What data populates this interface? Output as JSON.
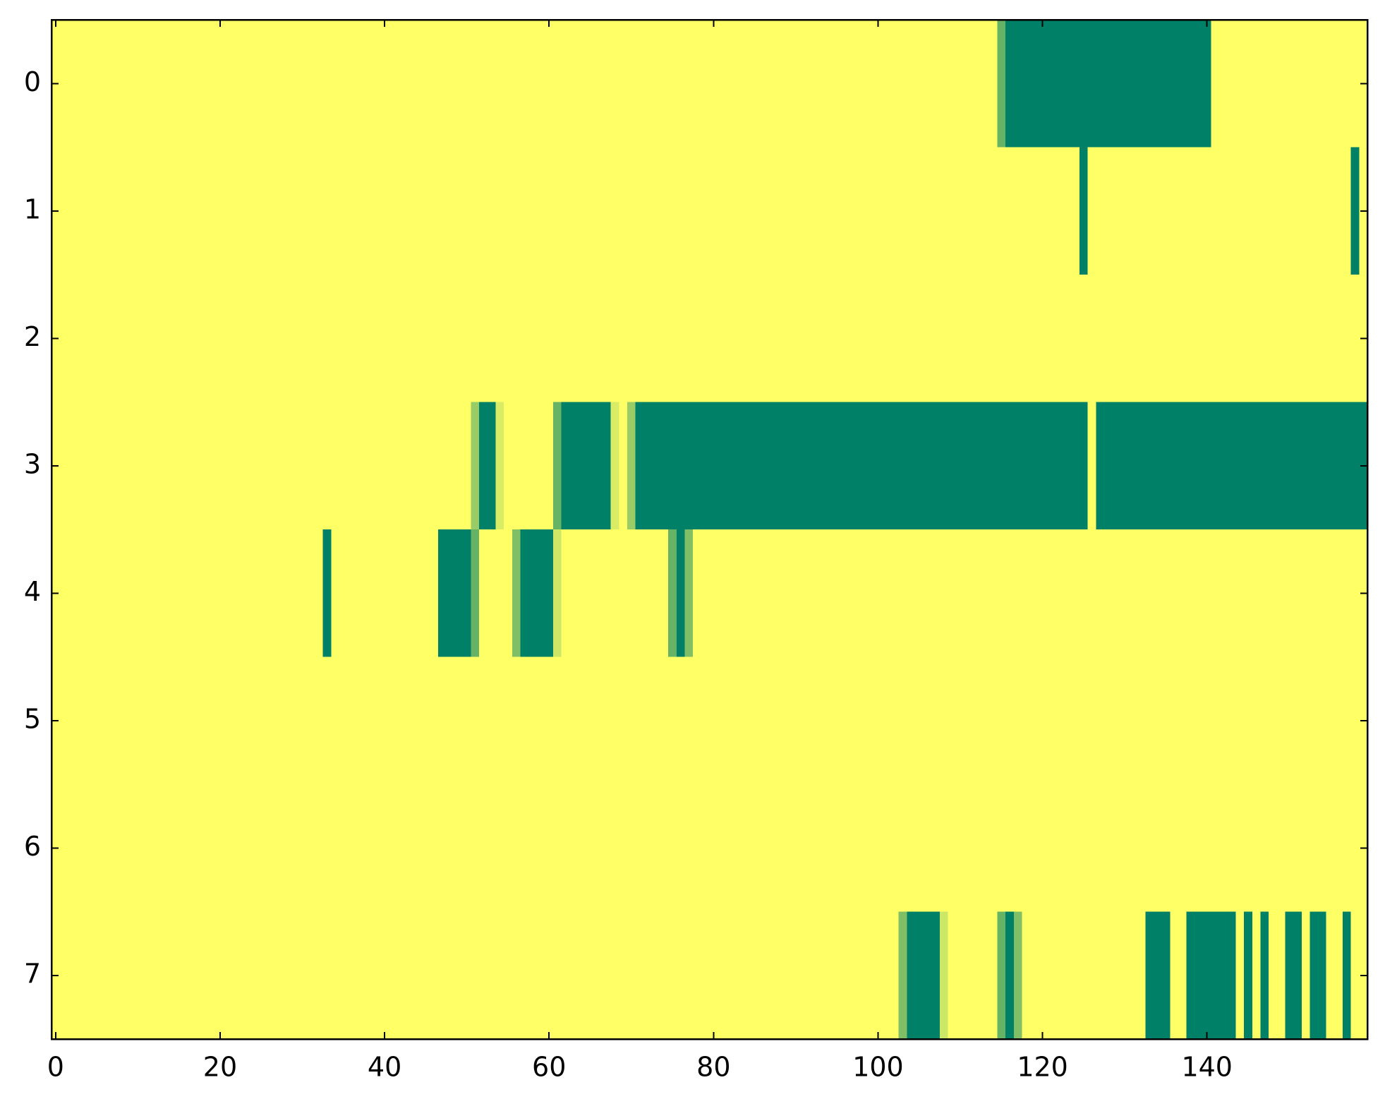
{
  "chart_data": {
    "type": "heatmap",
    "colormap": "summer",
    "clim": [
      0,
      1
    ],
    "xlim": [
      -0.5,
      159.5
    ],
    "ylim": [
      7.5,
      -0.5
    ],
    "xticks": [
      0,
      20,
      40,
      60,
      80,
      100,
      120,
      140
    ],
    "yticks": [
      0,
      1,
      2,
      3,
      4,
      5,
      6,
      7
    ],
    "z": [
      [
        1,
        1,
        1,
        1,
        1,
        1,
        1,
        1,
        1,
        1,
        1,
        1,
        1,
        1,
        1,
        1,
        1,
        1,
        1,
        1,
        1,
        1,
        1,
        1,
        1,
        1,
        1,
        1,
        1,
        1,
        1,
        1,
        1,
        1,
        1,
        1,
        1,
        1,
        1,
        1,
        1,
        1,
        1,
        1,
        1,
        1,
        1,
        1,
        1,
        1,
        1,
        1,
        1,
        1,
        1,
        1,
        1,
        1,
        1,
        1,
        1,
        1,
        1,
        1,
        1,
        1,
        1,
        1,
        1,
        1,
        1,
        1,
        1,
        1,
        1,
        1,
        1,
        1,
        1,
        1,
        1,
        1,
        1,
        1,
        1,
        1,
        1,
        1,
        1,
        1,
        1,
        1,
        1,
        1,
        1,
        1,
        1,
        1,
        1,
        1,
        1,
        1,
        1,
        1,
        1,
        1,
        1,
        1,
        1,
        1,
        1,
        1,
        1,
        1,
        1,
        0.4,
        0,
        0,
        0,
        0,
        0,
        0,
        0,
        0,
        0,
        0,
        0,
        0,
        0,
        0,
        0,
        0,
        0,
        0,
        0,
        0,
        0,
        0,
        0,
        0,
        0,
        1,
        1,
        1,
        1,
        1,
        1,
        1,
        1,
        1,
        1,
        1,
        1,
        1,
        1,
        1,
        1,
        1,
        1,
        1
      ],
      [
        1,
        1,
        1,
        1,
        1,
        1,
        1,
        1,
        1,
        1,
        1,
        1,
        1,
        1,
        1,
        1,
        1,
        1,
        1,
        1,
        1,
        1,
        1,
        1,
        1,
        1,
        1,
        1,
        1,
        1,
        1,
        1,
        1,
        1,
        1,
        1,
        1,
        1,
        1,
        1,
        1,
        1,
        1,
        1,
        1,
        1,
        1,
        1,
        1,
        1,
        1,
        1,
        1,
        1,
        1,
        1,
        1,
        1,
        1,
        1,
        1,
        1,
        1,
        1,
        1,
        1,
        1,
        1,
        1,
        1,
        1,
        1,
        1,
        1,
        1,
        1,
        1,
        1,
        1,
        1,
        1,
        1,
        1,
        1,
        1,
        1,
        1,
        1,
        1,
        1,
        1,
        1,
        1,
        1,
        1,
        1,
        1,
        1,
        1,
        1,
        1,
        1,
        1,
        1,
        1,
        1,
        1,
        1,
        1,
        1,
        1,
        1,
        1,
        1,
        1,
        1,
        1,
        1,
        1,
        1,
        1,
        1,
        1,
        1,
        1,
        0,
        1,
        1,
        1,
        1,
        1,
        1,
        1,
        1,
        1,
        1,
        1,
        1,
        1,
        1,
        1,
        1,
        1,
        1,
        1,
        1,
        1,
        1,
        1,
        1,
        1,
        1,
        1,
        1,
        1,
        1,
        1,
        1,
        0,
        1
      ],
      [
        1,
        1,
        1,
        1,
        1,
        1,
        1,
        1,
        1,
        1,
        1,
        1,
        1,
        1,
        1,
        1,
        1,
        1,
        1,
        1,
        1,
        1,
        1,
        1,
        1,
        1,
        1,
        1,
        1,
        1,
        1,
        1,
        1,
        1,
        1,
        1,
        1,
        1,
        1,
        1,
        1,
        1,
        1,
        1,
        1,
        1,
        1,
        1,
        1,
        1,
        1,
        1,
        1,
        1,
        1,
        1,
        1,
        1,
        1,
        1,
        1,
        1,
        1,
        1,
        1,
        1,
        1,
        1,
        1,
        1,
        1,
        1,
        1,
        1,
        1,
        1,
        1,
        1,
        1,
        1,
        1,
        1,
        1,
        1,
        1,
        1,
        1,
        1,
        1,
        1,
        1,
        1,
        1,
        1,
        1,
        1,
        1,
        1,
        1,
        1,
        1,
        1,
        1,
        1,
        1,
        1,
        1,
        1,
        1,
        1,
        1,
        1,
        1,
        1,
        1,
        1,
        1,
        1,
        1,
        1,
        1,
        1,
        1,
        1,
        1,
        1,
        1,
        1,
        1,
        1,
        1,
        1,
        1,
        1,
        1,
        1,
        1,
        1,
        1,
        1,
        1,
        1,
        1,
        1,
        1,
        1,
        1,
        1,
        1,
        1,
        1,
        1,
        1,
        1,
        1,
        1,
        1,
        1,
        1,
        1
      ],
      [
        1,
        1,
        1,
        1,
        1,
        1,
        1,
        1,
        1,
        1,
        1,
        1,
        1,
        1,
        1,
        1,
        1,
        1,
        1,
        1,
        1,
        1,
        1,
        1,
        1,
        1,
        1,
        1,
        1,
        1,
        1,
        1,
        1,
        1,
        1,
        1,
        1,
        1,
        1,
        1,
        1,
        1,
        1,
        1,
        1,
        1,
        1,
        1,
        1,
        1,
        1,
        0.6,
        0,
        0,
        0.85,
        1,
        1,
        1,
        1,
        1,
        1,
        0.4,
        0,
        0,
        0,
        0,
        0,
        0,
        0.85,
        1,
        0.6,
        0,
        0,
        0,
        0,
        0,
        0,
        0,
        0,
        0,
        0,
        0,
        0,
        0,
        0,
        0,
        0,
        0,
        0,
        0,
        0,
        0,
        0,
        0,
        0,
        0,
        0,
        0,
        0,
        0,
        0,
        0,
        0,
        0,
        0,
        0,
        0,
        0,
        0,
        0,
        0,
        0,
        0,
        0,
        0,
        0,
        0,
        0,
        0,
        0,
        0,
        0,
        0,
        0,
        0,
        0,
        1,
        0,
        0,
        0,
        0,
        0,
        0,
        0,
        0,
        0,
        0,
        0,
        0,
        0,
        0,
        0,
        0,
        0,
        0,
        0,
        0,
        0,
        0,
        0,
        0,
        0,
        0,
        0,
        0,
        0,
        0,
        0,
        0,
        0
      ],
      [
        1,
        1,
        1,
        1,
        1,
        1,
        1,
        1,
        1,
        1,
        1,
        1,
        1,
        1,
        1,
        1,
        1,
        1,
        1,
        1,
        1,
        1,
        1,
        1,
        1,
        1,
        1,
        1,
        1,
        1,
        1,
        1,
        1,
        0,
        1,
        1,
        1,
        1,
        1,
        1,
        1,
        1,
        1,
        1,
        1,
        1,
        1,
        0,
        0,
        0,
        0,
        0.4,
        1,
        1,
        1,
        1,
        0.5,
        0,
        0,
        0,
        0,
        0.8,
        1,
        1,
        1,
        1,
        1,
        1,
        1,
        1,
        1,
        1,
        1,
        1,
        1,
        0.4,
        0,
        0.5,
        1,
        1,
        1,
        1,
        1,
        1,
        1,
        1,
        1,
        1,
        1,
        1,
        1,
        1,
        1,
        1,
        1,
        1,
        1,
        1,
        1,
        1,
        1,
        1,
        1,
        1,
        1,
        1,
        1,
        1,
        1,
        1,
        1,
        1,
        1,
        1,
        1,
        1,
        1,
        1,
        1,
        1,
        1,
        1,
        1,
        1,
        1,
        1,
        1,
        1,
        1,
        1,
        1,
        1,
        1,
        1,
        1,
        1,
        1,
        1,
        1,
        1,
        1,
        1,
        1,
        1,
        1,
        1,
        1,
        1,
        1,
        1,
        1,
        1,
        1,
        1,
        1,
        1,
        1,
        1,
        1,
        1
      ],
      [
        1,
        1,
        1,
        1,
        1,
        1,
        1,
        1,
        1,
        1,
        1,
        1,
        1,
        1,
        1,
        1,
        1,
        1,
        1,
        1,
        1,
        1,
        1,
        1,
        1,
        1,
        1,
        1,
        1,
        1,
        1,
        1,
        1,
        1,
        1,
        1,
        1,
        1,
        1,
        1,
        1,
        1,
        1,
        1,
        1,
        1,
        1,
        1,
        1,
        1,
        1,
        1,
        1,
        1,
        1,
        1,
        1,
        1,
        1,
        1,
        1,
        1,
        1,
        1,
        1,
        1,
        1,
        1,
        1,
        1,
        1,
        1,
        1,
        1,
        1,
        1,
        1,
        1,
        1,
        1,
        1,
        1,
        1,
        1,
        1,
        1,
        1,
        1,
        1,
        1,
        1,
        1,
        1,
        1,
        1,
        1,
        1,
        1,
        1,
        1,
        1,
        1,
        1,
        1,
        1,
        1,
        1,
        1,
        1,
        1,
        1,
        1,
        1,
        1,
        1,
        1,
        1,
        1,
        1,
        1,
        1,
        1,
        1,
        1,
        1,
        1,
        1,
        1,
        1,
        1,
        1,
        1,
        1,
        1,
        1,
        1,
        1,
        1,
        1,
        1,
        1,
        1,
        1,
        1,
        1,
        1,
        1,
        1,
        1,
        1,
        1,
        1,
        1,
        1,
        1,
        1,
        1,
        1,
        1,
        1
      ],
      [
        1,
        1,
        1,
        1,
        1,
        1,
        1,
        1,
        1,
        1,
        1,
        1,
        1,
        1,
        1,
        1,
        1,
        1,
        1,
        1,
        1,
        1,
        1,
        1,
        1,
        1,
        1,
        1,
        1,
        1,
        1,
        1,
        1,
        1,
        1,
        1,
        1,
        1,
        1,
        1,
        1,
        1,
        1,
        1,
        1,
        1,
        1,
        1,
        1,
        1,
        1,
        1,
        1,
        1,
        1,
        1,
        1,
        1,
        1,
        1,
        1,
        1,
        1,
        1,
        1,
        1,
        1,
        1,
        1,
        1,
        1,
        1,
        1,
        1,
        1,
        1,
        1,
        1,
        1,
        1,
        1,
        1,
        1,
        1,
        1,
        1,
        1,
        1,
        1,
        1,
        1,
        1,
        1,
        1,
        1,
        1,
        1,
        1,
        1,
        1,
        1,
        1,
        1,
        1,
        1,
        1,
        1,
        1,
        1,
        1,
        1,
        1,
        1,
        1,
        1,
        1,
        1,
        1,
        1,
        1,
        1,
        1,
        1,
        1,
        1,
        1,
        1,
        1,
        1,
        1,
        1,
        1,
        1,
        1,
        1,
        1,
        1,
        1,
        1,
        1,
        1,
        1,
        1,
        1,
        1,
        1,
        1,
        1,
        1,
        1,
        1,
        1,
        1,
        1,
        1,
        1,
        1,
        1,
        1,
        1
      ],
      [
        1,
        1,
        1,
        1,
        1,
        1,
        1,
        1,
        1,
        1,
        1,
        1,
        1,
        1,
        1,
        1,
        1,
        1,
        1,
        1,
        1,
        1,
        1,
        1,
        1,
        1,
        1,
        1,
        1,
        1,
        1,
        1,
        1,
        1,
        1,
        1,
        1,
        1,
        1,
        1,
        1,
        1,
        1,
        1,
        1,
        1,
        1,
        1,
        1,
        1,
        1,
        1,
        1,
        1,
        1,
        1,
        1,
        1,
        1,
        1,
        1,
        1,
        1,
        1,
        1,
        1,
        1,
        1,
        1,
        1,
        1,
        1,
        1,
        1,
        1,
        1,
        1,
        1,
        1,
        1,
        1,
        1,
        1,
        1,
        1,
        1,
        1,
        1,
        1,
        1,
        1,
        1,
        1,
        1,
        1,
        1,
        1,
        1,
        1,
        1,
        1,
        1,
        1,
        0.5,
        0,
        0,
        0,
        0,
        0.8,
        1,
        1,
        1,
        1,
        1,
        1,
        0.4,
        0,
        0.5,
        1,
        1,
        1,
        1,
        1,
        1,
        1,
        1,
        1,
        1,
        1,
        1,
        1,
        1,
        1,
        0,
        0,
        0,
        1,
        1,
        0,
        0,
        0,
        0,
        0,
        0,
        1,
        0,
        1,
        0,
        1,
        1,
        0,
        0,
        1,
        0,
        0,
        1,
        1,
        0,
        1,
        1
      ]
    ]
  }
}
